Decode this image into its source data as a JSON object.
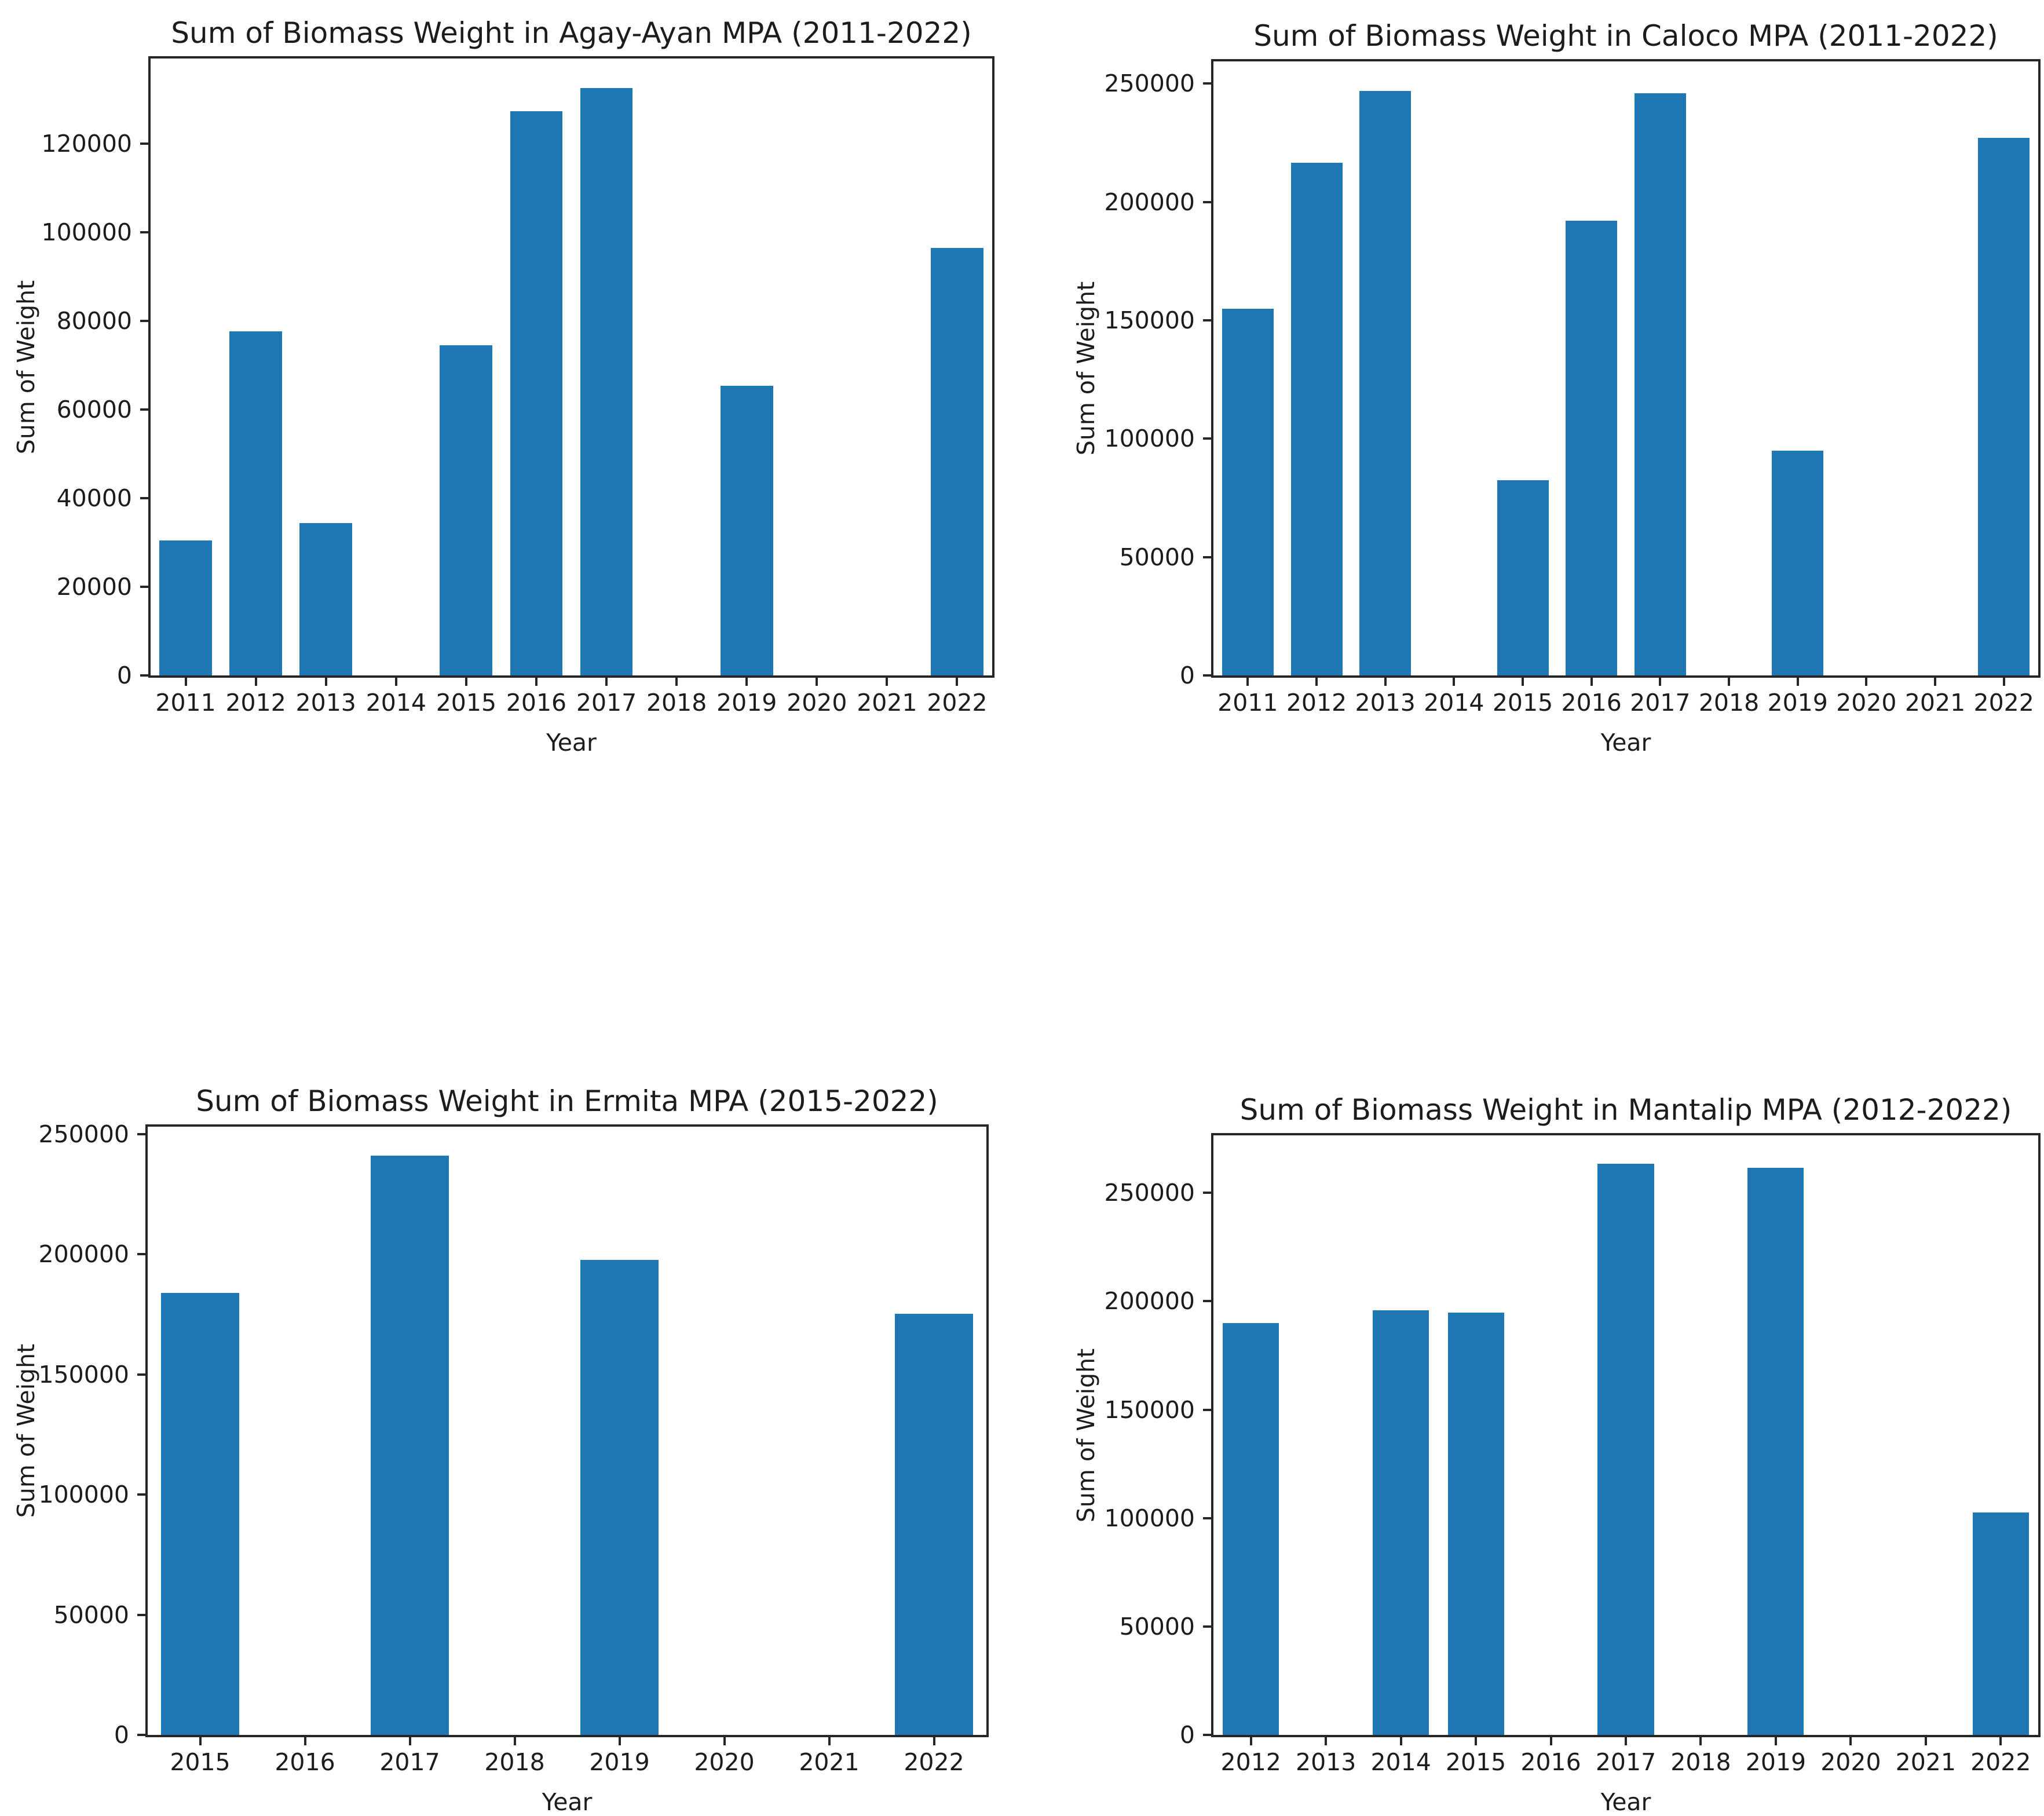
{
  "figure": {
    "background": "#ffffff",
    "bar_color": "#1f77b4",
    "text_color": "#1c1c1c"
  },
  "chart_data": [
    {
      "type": "bar",
      "title": "Sum of Biomass Weight in Agay-Ayan MPA (2011-2022)",
      "xlabel": "Year",
      "ylabel": "Sum of Weight",
      "categories": [
        "2011",
        "2012",
        "2013",
        "2014",
        "2015",
        "2016",
        "2017",
        "2018",
        "2019",
        "2020",
        "2021",
        "2022"
      ],
      "values": [
        30500,
        77700,
        34400,
        0,
        74500,
        127300,
        132500,
        0,
        65400,
        0,
        0,
        96500
      ],
      "yticks": [
        0,
        20000,
        40000,
        60000,
        80000,
        100000,
        120000
      ],
      "ylim": [
        0,
        139200
      ],
      "grid": false,
      "legend": "none",
      "bar_color": "#1f77b4"
    },
    {
      "type": "bar",
      "title": "Sum of Biomass Weight in Caloco MPA (2011-2022)",
      "xlabel": "Year",
      "ylabel": "Sum of Weight",
      "categories": [
        "2011",
        "2012",
        "2013",
        "2014",
        "2015",
        "2016",
        "2017",
        "2018",
        "2019",
        "2020",
        "2021",
        "2022"
      ],
      "values": [
        155000,
        216500,
        247000,
        0,
        82500,
        192000,
        246000,
        0,
        95000,
        0,
        0,
        227000
      ],
      "yticks": [
        0,
        50000,
        100000,
        150000,
        200000,
        250000
      ],
      "ylim": [
        0,
        259400
      ],
      "grid": false,
      "legend": "none",
      "bar_color": "#1f77b4"
    },
    {
      "type": "bar",
      "title": "Sum of Biomass Weight in Ermita MPA (2015-2022)",
      "xlabel": "Year",
      "ylabel": "Sum of Weight",
      "categories": [
        "2015",
        "2016",
        "2017",
        "2018",
        "2019",
        "2020",
        "2021",
        "2022"
      ],
      "values": [
        184000,
        0,
        241000,
        0,
        197700,
        0,
        0,
        175300
      ],
      "yticks": [
        0,
        50000,
        100000,
        150000,
        200000,
        250000
      ],
      "ylim": [
        0,
        253100
      ],
      "grid": false,
      "legend": "none",
      "bar_color": "#1f77b4"
    },
    {
      "type": "bar",
      "title": "Sum of Biomass Weight in Mantalip MPA (2012-2022)",
      "xlabel": "Year",
      "ylabel": "Sum of Weight",
      "categories": [
        "2012",
        "2013",
        "2014",
        "2015",
        "2016",
        "2017",
        "2018",
        "2019",
        "2020",
        "2021",
        "2022"
      ],
      "values": [
        190000,
        0,
        195700,
        194800,
        0,
        263300,
        0,
        261500,
        0,
        0,
        102600
      ],
      "yticks": [
        0,
        50000,
        100000,
        150000,
        200000,
        250000
      ],
      "ylim": [
        0,
        276500
      ],
      "grid": false,
      "legend": "none",
      "bar_color": "#1f77b4"
    }
  ]
}
